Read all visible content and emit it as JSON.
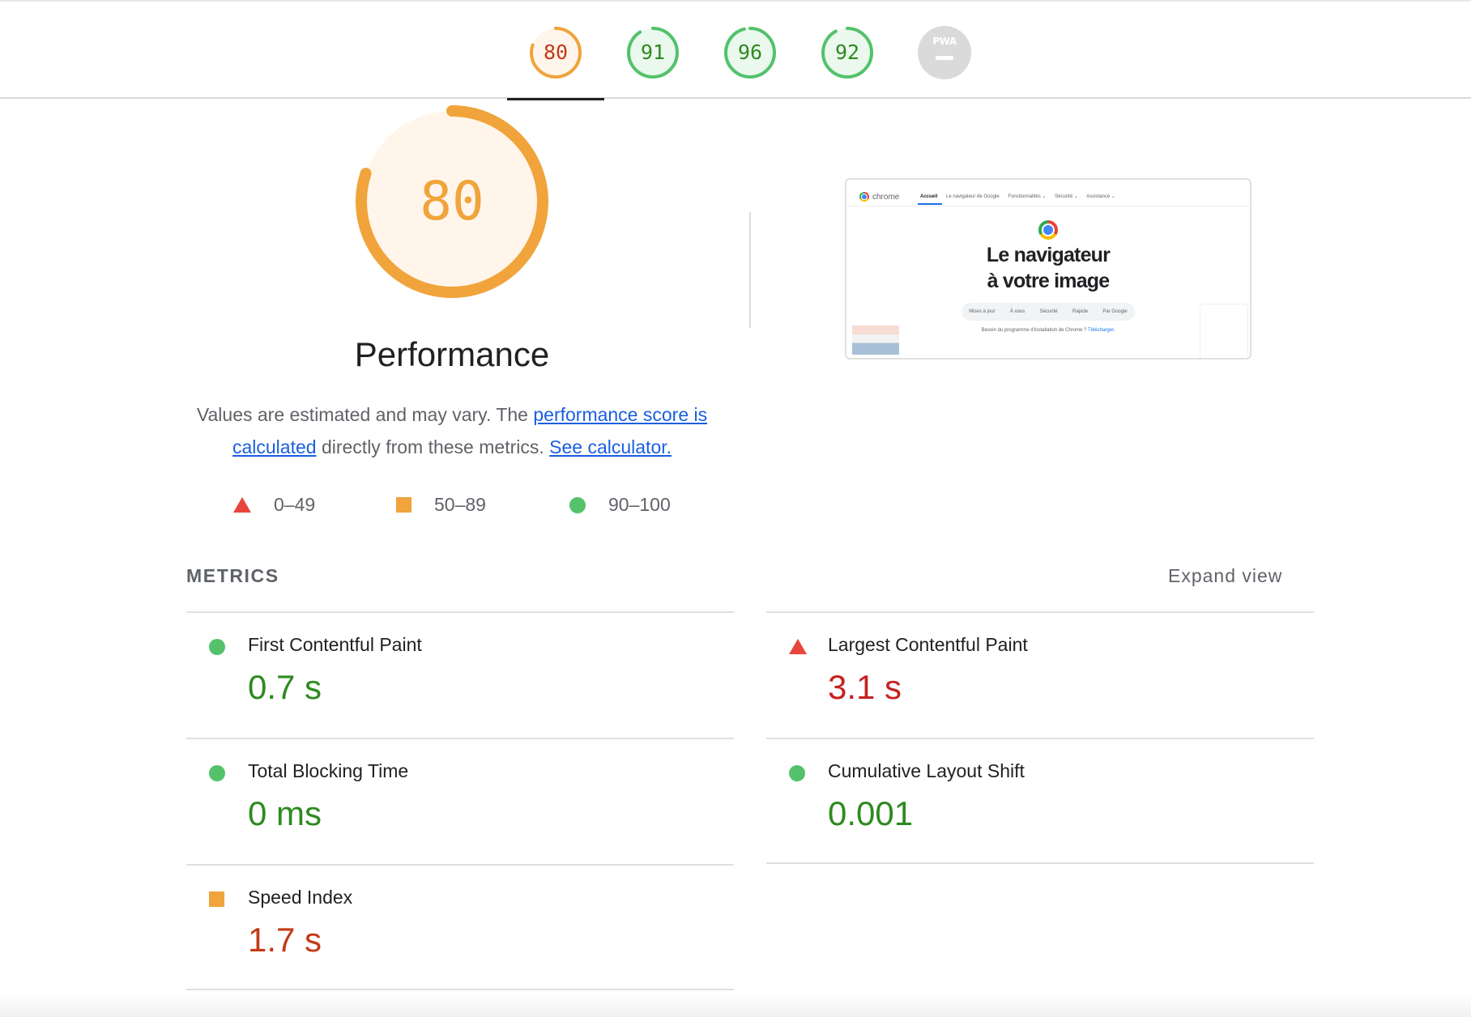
{
  "tabs": [
    {
      "name": "performance",
      "score": "80",
      "value": 80,
      "status": "average",
      "color": "#f0a43b",
      "bg": "#fff5eb",
      "text_color": "#c33a16",
      "active": true
    },
    {
      "name": "accessibility",
      "score": "91",
      "value": 91,
      "status": "good",
      "color": "#53c26b",
      "bg": "#eaf8ed",
      "text_color": "#2d8a1f",
      "active": false
    },
    {
      "name": "best-practices",
      "score": "96",
      "value": 96,
      "status": "good",
      "color": "#53c26b",
      "bg": "#eaf8ed",
      "text_color": "#2d8a1f",
      "active": false
    },
    {
      "name": "seo",
      "score": "92",
      "value": 92,
      "status": "good",
      "color": "#53c26b",
      "bg": "#eaf8ed",
      "text_color": "#2d8a1f",
      "active": false
    }
  ],
  "pwa": {
    "badge": "PWA",
    "color": "#dadada"
  },
  "gauge": {
    "score": "80",
    "value": 80,
    "color": "#f0a43b",
    "bg": "#fff5eb"
  },
  "category": {
    "title": "Performance"
  },
  "description": {
    "text_1": "Values are estimated and may vary. The ",
    "link_1": "performance score is calculated",
    "text_2": " directly from these metrics. ",
    "link_2": "See calculator."
  },
  "legend": [
    {
      "icon": "triangle-icon",
      "range": "0–49",
      "color": "#e8453c"
    },
    {
      "icon": "square-icon",
      "range": "50–89",
      "color": "#f0a43b"
    },
    {
      "icon": "circle-icon",
      "range": "90–100",
      "color": "#53c26b"
    }
  ],
  "thumbnail": {
    "logo": "chrome",
    "nav": [
      "Accueil",
      "Le navigateur de Google",
      "Fonctionnalités ⌄",
      "Sécurité ⌄",
      "Assistance ⌄"
    ],
    "headline_1": "Le navigateur",
    "headline_2": "à votre image",
    "pills": [
      "Mises à jour",
      "À vous",
      "Sécurité",
      "Rapide",
      "Par Google"
    ],
    "footer_text": "Besoin du programme d'installation de Chrome ? ",
    "footer_link": "Télécharger."
  },
  "metrics": {
    "title": "METRICS",
    "expand_label": "Expand view",
    "items": [
      {
        "name": "first-contentful-paint",
        "label": "First Contentful Paint",
        "value": "0.7 s",
        "status": "good",
        "icon": "circle-icon"
      },
      {
        "name": "largest-contentful-paint",
        "label": "Largest Contentful Paint",
        "value": "3.1 s",
        "status": "poor",
        "icon": "triangle-icon"
      },
      {
        "name": "total-blocking-time",
        "label": "Total Blocking Time",
        "value": "0 ms",
        "status": "good",
        "icon": "circle-icon"
      },
      {
        "name": "cumulative-layout-shift",
        "label": "Cumulative Layout Shift",
        "value": "0.001",
        "status": "good",
        "icon": "circle-icon"
      },
      {
        "name": "speed-index",
        "label": "Speed Index",
        "value": "1.7 s",
        "status": "average",
        "icon": "square-icon"
      }
    ]
  }
}
